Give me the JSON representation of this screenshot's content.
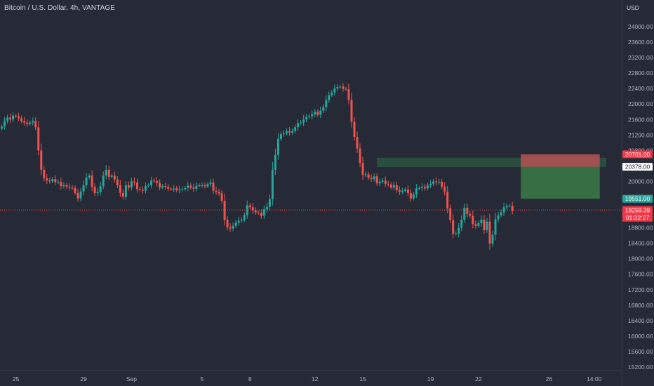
{
  "header": {
    "title": "Bitcoin / U.S. Dollar, 4h, VANTAGE",
    "currency": "USD"
  },
  "colors": {
    "background": "#262a36",
    "up": "#26a69a",
    "down": "#ef5350",
    "axis_text": "#b2b5be",
    "current_line": "#ef5350"
  },
  "chart_data": {
    "type": "candlestick",
    "title": "Bitcoin / U.S. Dollar, 4h, VANTAGE",
    "y_unit": "USD",
    "ylim": [
      15000,
      24600
    ],
    "y_ticks": [
      "24000.00",
      "23600.00",
      "23200.00",
      "22800.00",
      "22400.00",
      "22000.00",
      "21600.00",
      "21200.00",
      "20800.00",
      "20400.00",
      "20000.00",
      "19600.00",
      "19200.00",
      "18800.00",
      "18400.00",
      "18000.00",
      "17600.00",
      "17200.00",
      "16800.00",
      "16400.00",
      "16000.00",
      "15600.00",
      "15200.00"
    ],
    "y_tick_values": [
      24000,
      23600,
      23200,
      22800,
      22400,
      22000,
      21600,
      21200,
      20800,
      20400,
      20000,
      19600,
      19200,
      18800,
      18400,
      18000,
      17600,
      17200,
      16800,
      16400,
      16000,
      15600,
      15200
    ],
    "x_ticks": [
      "25",
      "29",
      "Sep",
      "5",
      "8",
      "12",
      "15",
      "19",
      "22",
      "26",
      "14:00"
    ],
    "x_tick_index": [
      5,
      29,
      46,
      71,
      88,
      111,
      128,
      152,
      169,
      194,
      210
    ],
    "candle_count": 180,
    "approximate_closes": [
      21420,
      21560,
      21650,
      21600,
      21700,
      21680,
      21630,
      21560,
      21520,
      21480,
      21520,
      21560,
      21400,
      20800,
      20300,
      20080,
      20020,
      20000,
      20060,
      19980,
      19980,
      19880,
      19900,
      19860,
      19840,
      19830,
      19700,
      19560,
      19740,
      19900,
      20100,
      20150,
      19860,
      19700,
      19720,
      19880,
      20150,
      20300,
      20120,
      20150,
      20050,
      19900,
      19700,
      19600,
      19900,
      19840,
      20000,
      19970,
      19800,
      19780,
      19760,
      19880,
      19900,
      20020,
      20010,
      19960,
      19840,
      19880,
      19860,
      19810,
      19790,
      19820,
      19770,
      19790,
      19800,
      19830,
      19890,
      19840,
      19810,
      19890,
      19900,
      19900,
      19870,
      19930,
      19970,
      19760,
      19730,
      19690,
      19500,
      19000,
      18810,
      18780,
      18850,
      18930,
      18980,
      19000,
      19130,
      19380,
      19330,
      19250,
      19200,
      19180,
      19110,
      19280,
      19340,
      19540,
      20300,
      20680,
      21100,
      21220,
      21240,
      21300,
      21260,
      21300,
      21400,
      21500,
      21520,
      21600,
      21660,
      21680,
      21730,
      21800,
      21720,
      21830,
      21920,
      22100,
      22230,
      22300,
      22400,
      22440,
      22450,
      22390,
      22380,
      22110,
      21540,
      21150,
      20850,
      20480,
      20170,
      20180,
      20090,
      20060,
      20130,
      19950,
      19990,
      20020,
      19940,
      19920,
      19840,
      19900,
      19770,
      19730,
      19760,
      19790,
      19700,
      19560,
      19660,
      19820,
      19830,
      19860,
      19820,
      19900,
      19940,
      20000,
      19980,
      19990,
      19860,
      19730,
      19300,
      19000,
      18650,
      18650,
      18800,
      19010,
      19320,
      19160,
      19110,
      18900,
      18850,
      18920,
      19010,
      18740,
      18960,
      18390,
      18620,
      19020,
      19120,
      19200,
      19330,
      19360,
      19370,
      19230
    ],
    "zones": [
      {
        "type": "rectangle",
        "from_index": 133,
        "to_index": 215,
        "y_low": 20370,
        "y_high": 20610,
        "color": "#2e5a43"
      },
      {
        "type": "stop-loss",
        "from_index": 184,
        "to_index": 212,
        "y_low": 20378,
        "y_high": 20701,
        "color": "#b65454"
      },
      {
        "type": "take-profit",
        "from_index": 184,
        "to_index": 212,
        "y_low": 19551,
        "y_high": 20378,
        "color": "#3b7a45"
      }
    ],
    "price_labels": [
      {
        "value": 20701.0,
        "text": "20701.00",
        "bg": "#f23645",
        "fg": "#ffffff"
      },
      {
        "value": 20378.0,
        "text": "20378.00",
        "bg": "#ffffff",
        "fg": "#131722"
      },
      {
        "value": 19551.0,
        "text": "19551.00",
        "bg": "#26a69a",
        "fg": "#ffffff"
      },
      {
        "value": 19259.39,
        "text": "19259.39",
        "bg": "#f23645",
        "fg": "#ffffff",
        "sub": "01:22:27"
      }
    ],
    "last_price": 19259.39,
    "countdown": "01:22:27",
    "grid": false
  }
}
